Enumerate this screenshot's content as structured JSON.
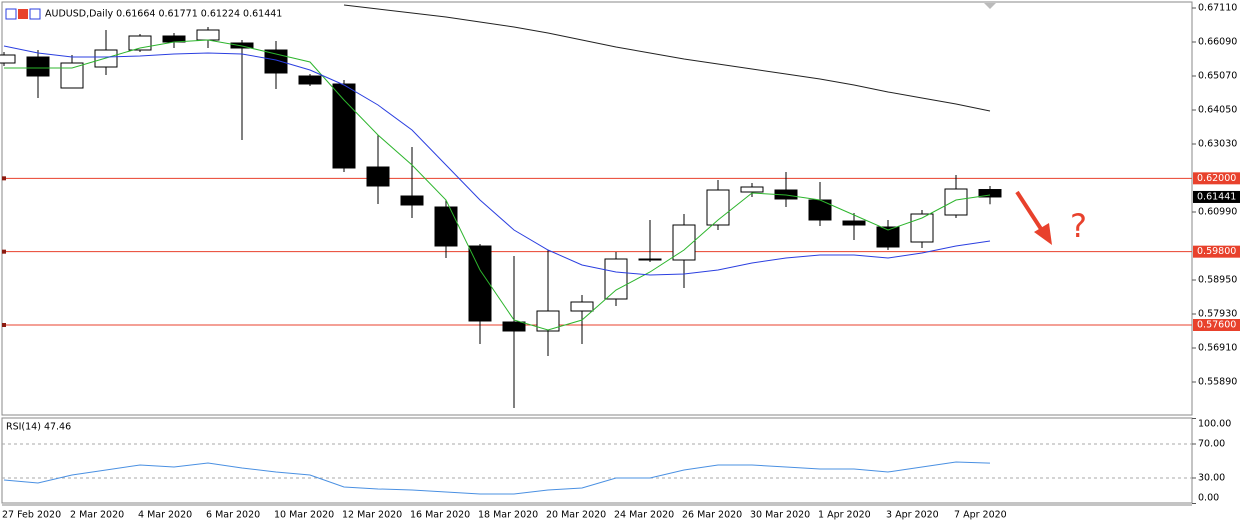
{
  "chart_data": [
    {
      "type": "candlestick",
      "title": "AUDUSD,Daily  0.61664 0.61771 0.61224 0.61441",
      "categories": [
        "27 Feb 2020",
        null,
        "2 Mar 2020",
        null,
        "4 Mar 2020",
        null,
        "6 Mar 2020",
        null,
        "10 Mar 2020",
        null,
        "12 Mar 2020",
        null,
        "16 Mar 2020",
        null,
        "18 Mar 2020",
        null,
        "20 Mar 2020",
        null,
        "24 Mar 2020",
        null,
        "26 Mar 2020",
        null,
        "30 Mar 2020",
        null,
        "1 Apr 2020",
        null,
        "3 Apr 2020",
        null,
        "7 Apr 2020",
        null
      ],
      "open": [
        0.6546,
        0.6564,
        0.6471,
        0.6534,
        0.6585,
        0.6627,
        0.6615,
        0.6606,
        0.6585,
        0.6507,
        0.6483,
        0.6234,
        0.6147,
        0.6114,
        0.5997,
        0.5769,
        0.5742,
        0.5802,
        0.5838,
        0.5958,
        0.5955,
        0.606,
        0.6159,
        0.6165,
        0.6135,
        0.6072,
        0.6054,
        0.6009,
        0.609,
        0.61664
      ],
      "high": [
        0.6579,
        0.6585,
        0.657,
        0.6645,
        0.6633,
        0.6636,
        0.6654,
        0.6615,
        0.6612,
        0.6513,
        0.6495,
        0.633,
        0.6294,
        0.6135,
        0.6003,
        0.5967,
        0.5985,
        0.585,
        0.5979,
        0.6075,
        0.6093,
        0.6195,
        0.6186,
        0.6219,
        0.6189,
        0.6096,
        0.6075,
        0.6105,
        0.621,
        0.61771
      ],
      "low": [
        0.6537,
        0.6441,
        0.6471,
        0.651,
        0.6579,
        0.6591,
        0.6591,
        0.6315,
        0.6468,
        0.6477,
        0.6219,
        0.6123,
        0.6081,
        0.5961,
        0.5703,
        0.5511,
        0.5667,
        0.5703,
        0.5817,
        0.5949,
        0.5871,
        0.6045,
        0.6144,
        0.6114,
        0.6057,
        0.6015,
        0.5985,
        0.5991,
        0.6081,
        0.61224
      ],
      "close": [
        0.657,
        0.6507,
        0.6546,
        0.6585,
        0.6627,
        0.6609,
        0.6645,
        0.6591,
        0.6516,
        0.6483,
        0.6231,
        0.6177,
        0.612,
        0.5997,
        0.5772,
        0.5742,
        0.5802,
        0.5829,
        0.5958,
        0.5955,
        0.606,
        0.6165,
        0.6174,
        0.6138,
        0.6075,
        0.606,
        0.5994,
        0.6093,
        0.6168,
        0.61441
      ],
      "series": [
        {
          "color": "#2db52d",
          "values": [
            0.6531,
            0.6531,
            0.6531,
            0.6561,
            0.6591,
            0.6609,
            0.6615,
            0.6597,
            0.6573,
            0.6549,
            0.6435,
            0.633,
            0.624,
            0.6135,
            0.5925,
            0.5775,
            0.5745,
            0.5775,
            0.5865,
            0.5919,
            0.5985,
            0.6075,
            0.6156,
            0.615,
            0.6135,
            0.609,
            0.6045,
            0.6081,
            0.6135,
            0.615
          ]
        },
        {
          "color": "#2b3fe0",
          "values": [
            0.6597,
            0.6576,
            0.6564,
            0.6564,
            0.6567,
            0.6573,
            0.6576,
            0.6573,
            0.6555,
            0.6525,
            0.648,
            0.642,
            0.6345,
            0.624,
            0.6135,
            0.6045,
            0.5985,
            0.594,
            0.5919,
            0.591,
            0.5913,
            0.5925,
            0.5946,
            0.5961,
            0.597,
            0.597,
            0.5961,
            0.5976,
            0.5997,
            0.6012
          ]
        },
        {
          "color": "#222222",
          "values": [
            null,
            null,
            null,
            null,
            null,
            null,
            null,
            null,
            null,
            null,
            0.672,
            0.6708,
            0.6696,
            0.6684,
            0.6669,
            0.6654,
            0.6636,
            0.6615,
            0.6594,
            0.6576,
            0.6558,
            0.6543,
            0.6528,
            0.6513,
            0.6498,
            0.648,
            0.6459,
            0.6441,
            0.6423,
            0.6402
          ]
        }
      ],
      "ylim": [
        0.549,
        0.6729
      ],
      "yticks": [
        {
          "value": 0.6711,
          "label": "0.67110"
        },
        {
          "value": 0.6609,
          "label": "0.66090"
        },
        {
          "value": 0.6507,
          "label": "0.65070"
        },
        {
          "value": 0.6405,
          "label": "0.64050"
        },
        {
          "value": 0.6303,
          "label": "0.63030"
        },
        {
          "value": 0.6099,
          "label": "0.60990"
        },
        {
          "value": 0.5895,
          "label": "0.58950"
        },
        {
          "value": 0.5793,
          "label": "0.57930"
        },
        {
          "value": 0.5691,
          "label": "0.56910"
        },
        {
          "value": 0.5589,
          "label": "0.55890"
        }
      ],
      "price_lines": [
        {
          "value": 0.62,
          "label": "0.62000",
          "color": "#e8412c"
        },
        {
          "value": 0.598,
          "label": "0.59800",
          "color": "#e8412c"
        },
        {
          "value": 0.576,
          "label": "0.57600",
          "color": "#e8412c"
        }
      ],
      "last_price": {
        "value": 0.61441,
        "label": "0.61441",
        "color": "#000000"
      },
      "annotation": "?"
    },
    {
      "type": "line",
      "title": "RSI(14) 47.46",
      "series": [
        {
          "color": "#4a90e2",
          "values": [
            27.6,
            24.1,
            33.5,
            39.4,
            45.3,
            42.9,
            47.6,
            41.8,
            37.1,
            33.5,
            19.4,
            17.1,
            15.9,
            13.5,
            11.2,
            11.2,
            15.9,
            18.2,
            30,
            30,
            39.4,
            45.3,
            45.3,
            42.9,
            40.6,
            40.6,
            37.1,
            42.9,
            48.8,
            47.46
          ]
        }
      ],
      "ylim": [
        0,
        100
      ],
      "yticks": [
        {
          "value": 100,
          "label": "100.00"
        },
        {
          "value": 70,
          "label": "70.00"
        },
        {
          "value": 30,
          "label": "30.00"
        },
        {
          "value": 0,
          "label": "0.00"
        }
      ],
      "levels": [
        70,
        30
      ]
    }
  ]
}
